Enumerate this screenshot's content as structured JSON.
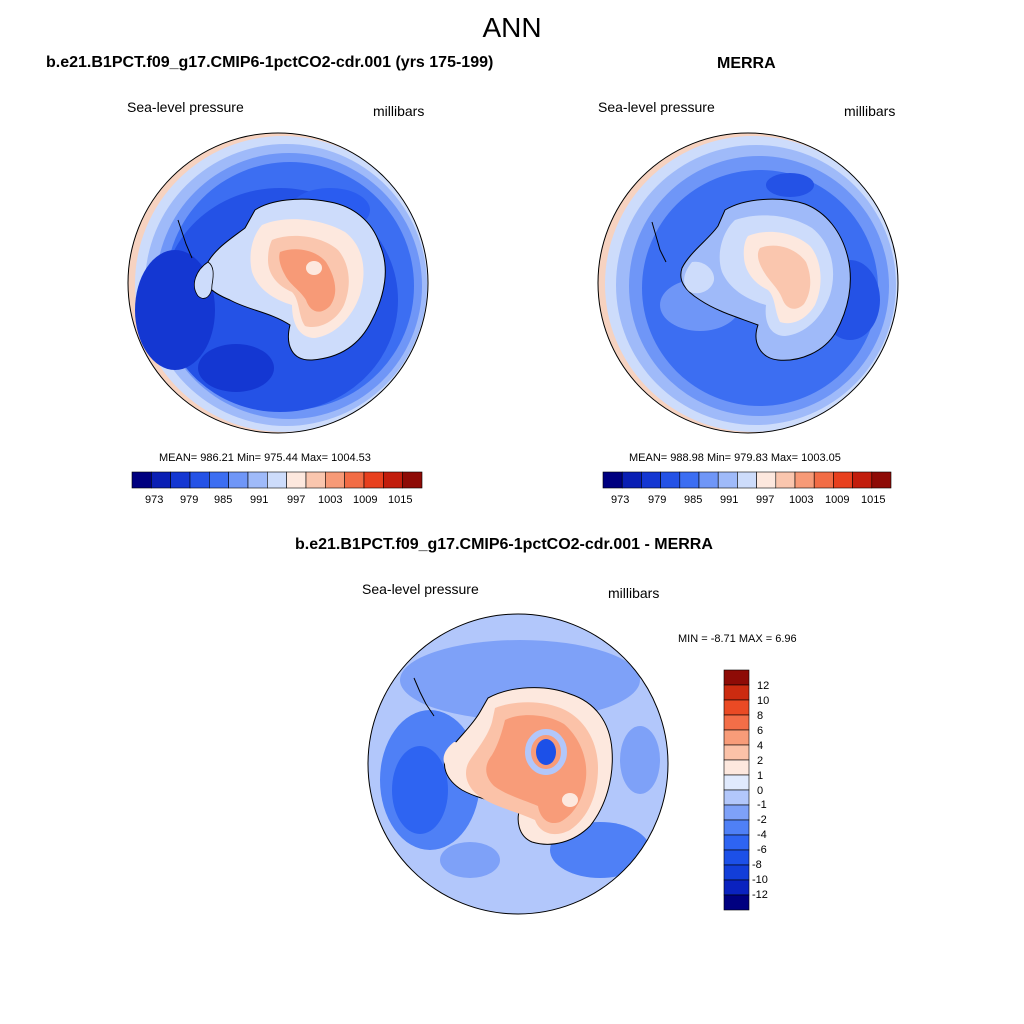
{
  "figure": {
    "title": "ANN",
    "colors": {
      "map_scale": [
        "#000080",
        "#0a1fb4",
        "#1437d2",
        "#2452e6",
        "#3c6ef2",
        "#6f96f7",
        "#9fbaf9",
        "#cddcfb",
        "#fde8de",
        "#fac6ae",
        "#f79a77",
        "#f26c45",
        "#e8401e",
        "#c21d0c",
        "#8e0b06"
      ],
      "diff_scale": [
        "#000080",
        "#0a22bf",
        "#123ed9",
        "#1c50e8",
        "#2e64f2",
        "#4f80f6",
        "#7ea1f8",
        "#b2c7fb",
        "#e0eafd",
        "#fde8de",
        "#fbc2a8",
        "#f89c79",
        "#f36e48",
        "#ea4a24",
        "#cc2b10",
        "#8e0b06"
      ],
      "land_outline": "#000000"
    }
  },
  "panels": [
    {
      "id": "model",
      "title": "b.e21.B1PCT.f09_g17.CMIP6-1pctCO2-cdr.001 (yrs 175-199)",
      "variable": "Sea-level pressure",
      "units": "millibars",
      "stats": "MEAN= 986.21  Min= 975.44  Max= 1004.53",
      "colorbar_labels": [
        "973",
        "979",
        "985",
        "991",
        "997",
        "1003",
        "1009",
        "1015"
      ]
    },
    {
      "id": "obs",
      "title": "MERRA",
      "variable": "Sea-level pressure",
      "units": "millibars",
      "stats": "MEAN= 988.98  Min= 979.83  Max= 1003.05",
      "colorbar_labels": [
        "973",
        "979",
        "985",
        "991",
        "997",
        "1003",
        "1009",
        "1015"
      ]
    },
    {
      "id": "diff",
      "title": "b.e21.B1PCT.f09_g17.CMIP6-1pctCO2-cdr.001 - MERRA",
      "variable": "Sea-level pressure",
      "units": "millibars",
      "stats": "MIN =  -8.71 MAX =   6.96",
      "colorbar_labels": [
        "12",
        "10",
        "8",
        "6",
        "4",
        "2",
        "1",
        "0",
        "-1",
        "-2",
        "-4",
        "-6",
        "-8",
        "-10",
        "-12"
      ]
    }
  ]
}
